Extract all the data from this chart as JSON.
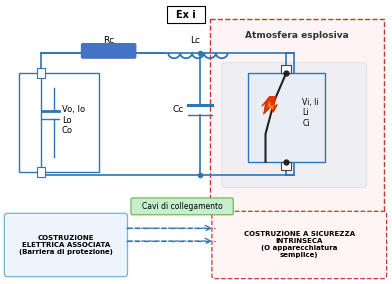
{
  "title_exi": "Ex i",
  "label_rc": "Rc",
  "label_lc": "Lc",
  "label_cc": "Cc",
  "label_source": "Vo, Io\nLo\nCo",
  "label_atm": "Atmosfera esplosiva",
  "label_vi": "Vi, Ii\nLi\nCi",
  "label_cavi": "Cavi di collegamento",
  "label_left_box": "COSTRUZIONE\nELETTRICA ASSOCIATA\n(Barriera di protezione)",
  "label_right_box": "COSTRUZIONE A SICUREZZA\nINTRINSECA\n(O apparecchiatura\nsemplice)",
  "wire_color": "#2e75b6",
  "resistor_color": "#4472c4",
  "dashed_red": "#c0392b",
  "green_label_bg": "#c6efce",
  "green_label_border": "#70ad47",
  "atm_bg": "#fdf5f5",
  "circuit_bg": "#e8f0f8",
  "dev_inner_bg": "#e8eef4"
}
